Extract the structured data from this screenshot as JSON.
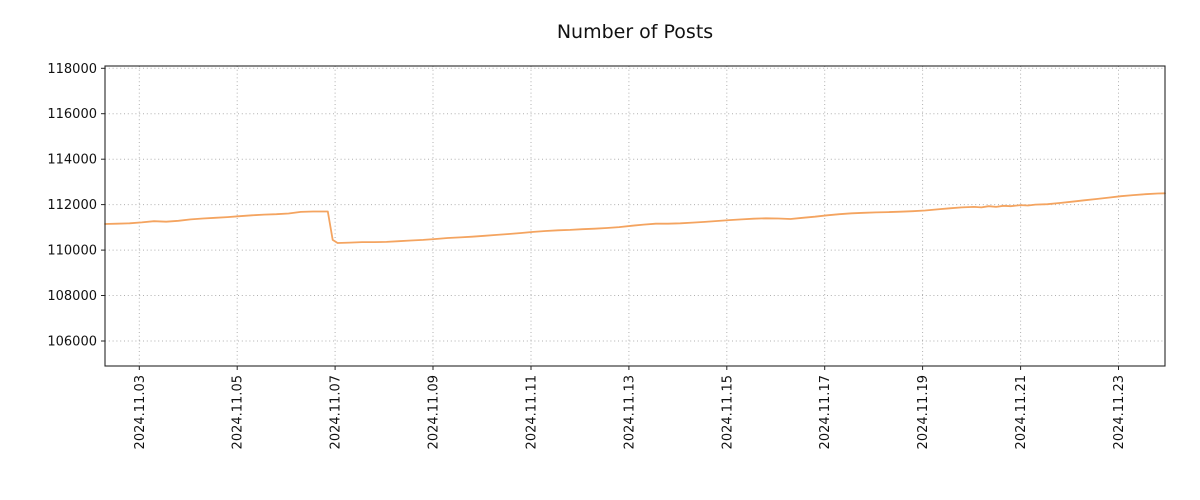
{
  "chart_data": {
    "type": "line",
    "title": "Number of Posts",
    "xlabel": "",
    "ylabel": "",
    "legend": false,
    "grid": true,
    "grid_style": "dotted",
    "line_color": "#f4a460",
    "x_unit": "day of 2024.11 (fractional)",
    "xlim": [
      2.3,
      23.95
    ],
    "ylim": [
      104900,
      118100
    ],
    "y_ticks": [
      106000,
      108000,
      110000,
      112000,
      114000,
      116000,
      118000
    ],
    "x_ticks": [
      {
        "day": 3,
        "label": "2024.11.03"
      },
      {
        "day": 5,
        "label": "2024.11.05"
      },
      {
        "day": 7,
        "label": "2024.11.07"
      },
      {
        "day": 9,
        "label": "2024.11.09"
      },
      {
        "day": 11,
        "label": "2024.11.11"
      },
      {
        "day": 13,
        "label": "2024.11.13"
      },
      {
        "day": 15,
        "label": "2024.11.15"
      },
      {
        "day": 17,
        "label": "2024.11.17"
      },
      {
        "day": 19,
        "label": "2024.11.19"
      },
      {
        "day": 21,
        "label": "2024.11.21"
      },
      {
        "day": 23,
        "label": "2024.11.23"
      }
    ],
    "series": [
      {
        "name": "Number of Posts",
        "x": [
          2.3,
          2.55,
          2.8,
          3.05,
          3.3,
          3.55,
          3.8,
          4.05,
          4.3,
          4.55,
          4.8,
          5.05,
          5.3,
          5.55,
          5.8,
          6.05,
          6.3,
          6.55,
          6.85,
          6.95,
          7.05,
          7.3,
          7.55,
          7.8,
          8.05,
          8.3,
          8.55,
          8.8,
          9.05,
          9.3,
          9.55,
          9.8,
          10.05,
          10.3,
          10.55,
          10.8,
          11.05,
          11.3,
          11.55,
          11.8,
          12.05,
          12.3,
          12.55,
          12.8,
          13.05,
          13.3,
          13.55,
          13.8,
          14.05,
          14.3,
          14.55,
          14.8,
          15.05,
          15.3,
          15.55,
          15.8,
          16.05,
          16.3,
          16.55,
          16.8,
          17.05,
          17.3,
          17.55,
          17.8,
          18.05,
          18.3,
          18.55,
          18.8,
          19.05,
          19.3,
          19.55,
          19.8,
          20.05,
          20.2,
          20.35,
          20.5,
          20.65,
          20.8,
          21.0,
          21.15,
          21.3,
          21.55,
          21.8,
          22.05,
          22.3,
          22.55,
          22.8,
          23.05,
          23.3,
          23.55,
          23.8,
          23.95
        ],
        "y": [
          111150,
          111160,
          111180,
          111220,
          111270,
          111250,
          111290,
          111350,
          111390,
          111420,
          111450,
          111490,
          111530,
          111560,
          111580,
          111610,
          111680,
          111700,
          111700,
          110450,
          110310,
          110330,
          110350,
          110350,
          110360,
          110390,
          110420,
          110450,
          110490,
          110530,
          110560,
          110590,
          110630,
          110670,
          110710,
          110750,
          110800,
          110840,
          110870,
          110890,
          110920,
          110940,
          110970,
          111010,
          111070,
          111120,
          111160,
          111160,
          111180,
          111210,
          111240,
          111280,
          111320,
          111350,
          111380,
          111400,
          111390,
          111370,
          111420,
          111470,
          111530,
          111580,
          111620,
          111640,
          111660,
          111670,
          111690,
          111710,
          111740,
          111790,
          111840,
          111880,
          111900,
          111880,
          111930,
          111900,
          111950,
          111930,
          111980,
          111960,
          112000,
          112020,
          112070,
          112130,
          112190,
          112250,
          112310,
          112370,
          112420,
          112460,
          112490,
          112500
        ]
      }
    ]
  }
}
